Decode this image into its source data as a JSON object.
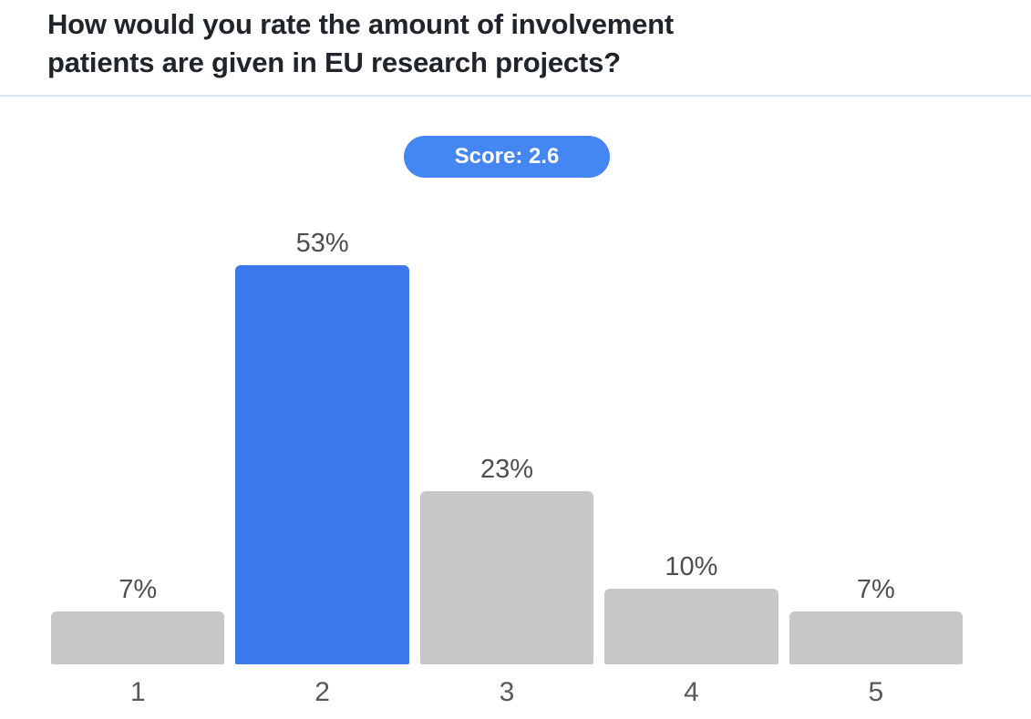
{
  "header": {
    "title_lines": [
      "How would you rate the amount of involvement",
      "patients are given in EU research projects?"
    ],
    "title_full": "How would you rate the amount of involvement patients are given in EU research projects?"
  },
  "score_badge": {
    "label": "Score: 2.6"
  },
  "colors": {
    "badge_blue": "#4486f2",
    "bar_highlight_blue": "#3b78eb",
    "bar_gray": "#c7c7c7",
    "divider": "#dbe3f1",
    "title_text": "#20242b",
    "value_label_text": "#4d4d52",
    "axis_label_text": "#58585c"
  },
  "chart_data": {
    "type": "bar",
    "title": "How would you rate the amount of involvement patients are given in EU research projects?",
    "score": 2.6,
    "score_label": "Score: 2.6",
    "categories": [
      "1",
      "2",
      "3",
      "4",
      "5"
    ],
    "values": [
      7,
      53,
      23,
      10,
      7
    ],
    "value_labels": [
      "7%",
      "53%",
      "23%",
      "10%",
      "7%"
    ],
    "highlighted_category": "2",
    "xlabel": "",
    "ylabel": "",
    "ylim": [
      0,
      53
    ],
    "grid": false,
    "legend": false,
    "bars": [
      {
        "category": "1",
        "value": 7,
        "label": "7%",
        "highlighted": false
      },
      {
        "category": "2",
        "value": 53,
        "label": "53%",
        "highlighted": true
      },
      {
        "category": "3",
        "value": 23,
        "label": "23%",
        "highlighted": false
      },
      {
        "category": "4",
        "value": 10,
        "label": "10%",
        "highlighted": false
      },
      {
        "category": "5",
        "value": 7,
        "label": "7%",
        "highlighted": false
      }
    ]
  }
}
